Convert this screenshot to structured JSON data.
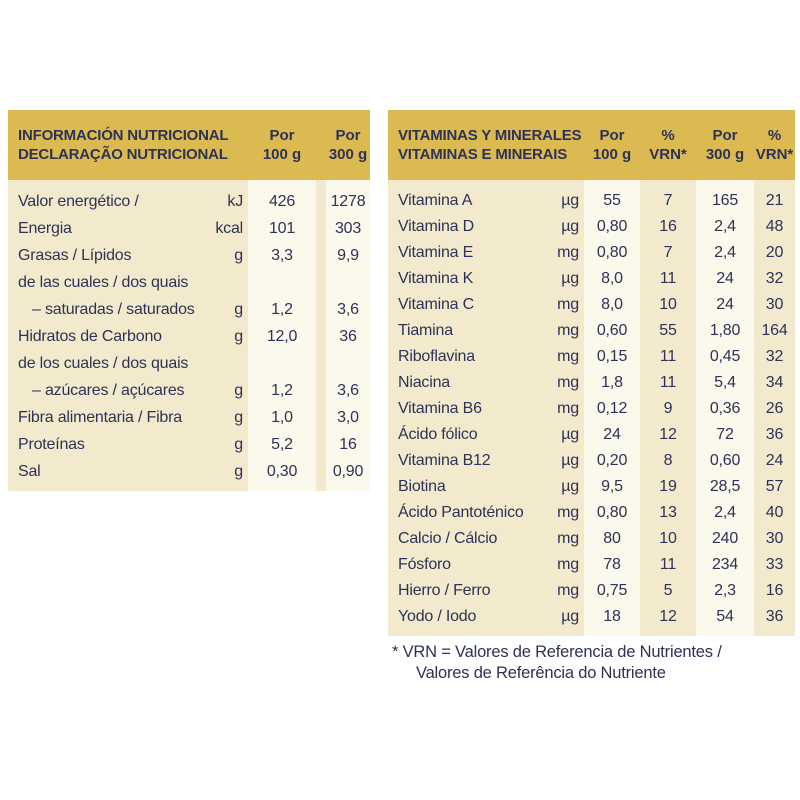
{
  "colors": {
    "header_gold": "#dcba52",
    "body_cream": "#f3eacd",
    "column_stripe": "#fbf8ec",
    "text_navy": "#2d3256",
    "page_background": "#ffffff"
  },
  "left_table": {
    "header": {
      "title_line1": "INFORMACIÓN NUTRICIONAL",
      "title_line2": "DECLARAÇÃO NUTRICIONAL",
      "col_100g": {
        "line1": "Por",
        "line2": "100 g"
      },
      "col_300g": {
        "line1": "Por",
        "line2": "300 g"
      }
    },
    "rows": [
      {
        "label": "Valor energético /",
        "unit": "kJ",
        "v100": "426",
        "v300": "1278"
      },
      {
        "label": "Energia",
        "unit": "kcal",
        "v100": "101",
        "v300": "303"
      },
      {
        "label": "Grasas / Lípidos",
        "unit": "g",
        "v100": "3,3",
        "v300": "9,9"
      },
      {
        "label": "de las cuales / dos quais",
        "unit": "",
        "v100": "",
        "v300": ""
      },
      {
        "label": "– saturadas / saturados",
        "unit": "g",
        "v100": "1,2",
        "v300": "3,6",
        "indent": true
      },
      {
        "label": "Hidratos de Carbono",
        "unit": "g",
        "v100": "12,0",
        "v300": "36"
      },
      {
        "label": "de los cuales / dos quais",
        "unit": "",
        "v100": "",
        "v300": ""
      },
      {
        "label": "– azúcares / açúcares",
        "unit": "g",
        "v100": "1,2",
        "v300": "3,6",
        "indent": true
      },
      {
        "label": "Fibra alimentaria / Fibra",
        "unit": "g",
        "v100": "1,0",
        "v300": "3,0"
      },
      {
        "label": "Proteínas",
        "unit": "g",
        "v100": "5,2",
        "v300": "16"
      },
      {
        "label": "Sal",
        "unit": "g",
        "v100": "0,30",
        "v300": "0,90"
      }
    ]
  },
  "right_table": {
    "header": {
      "title_line1": "VITAMINAS Y MINERALES",
      "title_line2": "VITAMINAS E MINERAIS",
      "col_100g": {
        "line1": "Por",
        "line2": "100 g"
      },
      "col_vrn1": {
        "line1": "%",
        "line2": "VRN*"
      },
      "col_300g": {
        "line1": "Por",
        "line2": "300 g"
      },
      "col_vrn2": {
        "line1": "%",
        "line2": "VRN*"
      }
    },
    "rows": [
      {
        "label": "Vitamina A",
        "unit": "µg",
        "v100": "55",
        "p100": "7",
        "v300": "165",
        "p300": "21"
      },
      {
        "label": "Vitamina D",
        "unit": "µg",
        "v100": "0,80",
        "p100": "16",
        "v300": "2,4",
        "p300": "48"
      },
      {
        "label": "Vitamina E",
        "unit": "mg",
        "v100": "0,80",
        "p100": "7",
        "v300": "2,4",
        "p300": "20"
      },
      {
        "label": "Vitamina K",
        "unit": "µg",
        "v100": "8,0",
        "p100": "11",
        "v300": "24",
        "p300": "32"
      },
      {
        "label": "Vitamina C",
        "unit": "mg",
        "v100": "8,0",
        "p100": "10",
        "v300": "24",
        "p300": "30"
      },
      {
        "label": "Tiamina",
        "unit": "mg",
        "v100": "0,60",
        "p100": "55",
        "v300": "1,80",
        "p300": "164"
      },
      {
        "label": "Riboflavina",
        "unit": "mg",
        "v100": "0,15",
        "p100": "11",
        "v300": "0,45",
        "p300": "32"
      },
      {
        "label": "Niacina",
        "unit": "mg",
        "v100": "1,8",
        "p100": "11",
        "v300": "5,4",
        "p300": "34"
      },
      {
        "label": "Vitamina B6",
        "unit": "mg",
        "v100": "0,12",
        "p100": "9",
        "v300": "0,36",
        "p300": "26"
      },
      {
        "label": "Ácido fólico",
        "unit": "µg",
        "v100": "24",
        "p100": "12",
        "v300": "72",
        "p300": "36"
      },
      {
        "label": "Vitamina B12",
        "unit": "µg",
        "v100": "0,20",
        "p100": "8",
        "v300": "0,60",
        "p300": "24"
      },
      {
        "label": "Biotina",
        "unit": "µg",
        "v100": "9,5",
        "p100": "19",
        "v300": "28,5",
        "p300": "57"
      },
      {
        "label": "Ácido Pantoténico",
        "unit": "mg",
        "v100": "0,80",
        "p100": "13",
        "v300": "2,4",
        "p300": "40"
      },
      {
        "label": "Calcio / Cálcio",
        "unit": "mg",
        "v100": "80",
        "p100": "10",
        "v300": "240",
        "p300": "30"
      },
      {
        "label": "Fósforo",
        "unit": "mg",
        "v100": "78",
        "p100": "11",
        "v300": "234",
        "p300": "33"
      },
      {
        "label": "Hierro / Ferro",
        "unit": "mg",
        "v100": "0,75",
        "p100": "5",
        "v300": "2,3",
        "p300": "16"
      },
      {
        "label": "Yodo / Iodo",
        "unit": "µg",
        "v100": "18",
        "p100": "12",
        "v300": "54",
        "p300": "36"
      }
    ]
  },
  "footnote": {
    "line1": "* VRN = Valores de Referencia de Nutrientes /",
    "line2": "Valores de Referência do Nutriente"
  }
}
